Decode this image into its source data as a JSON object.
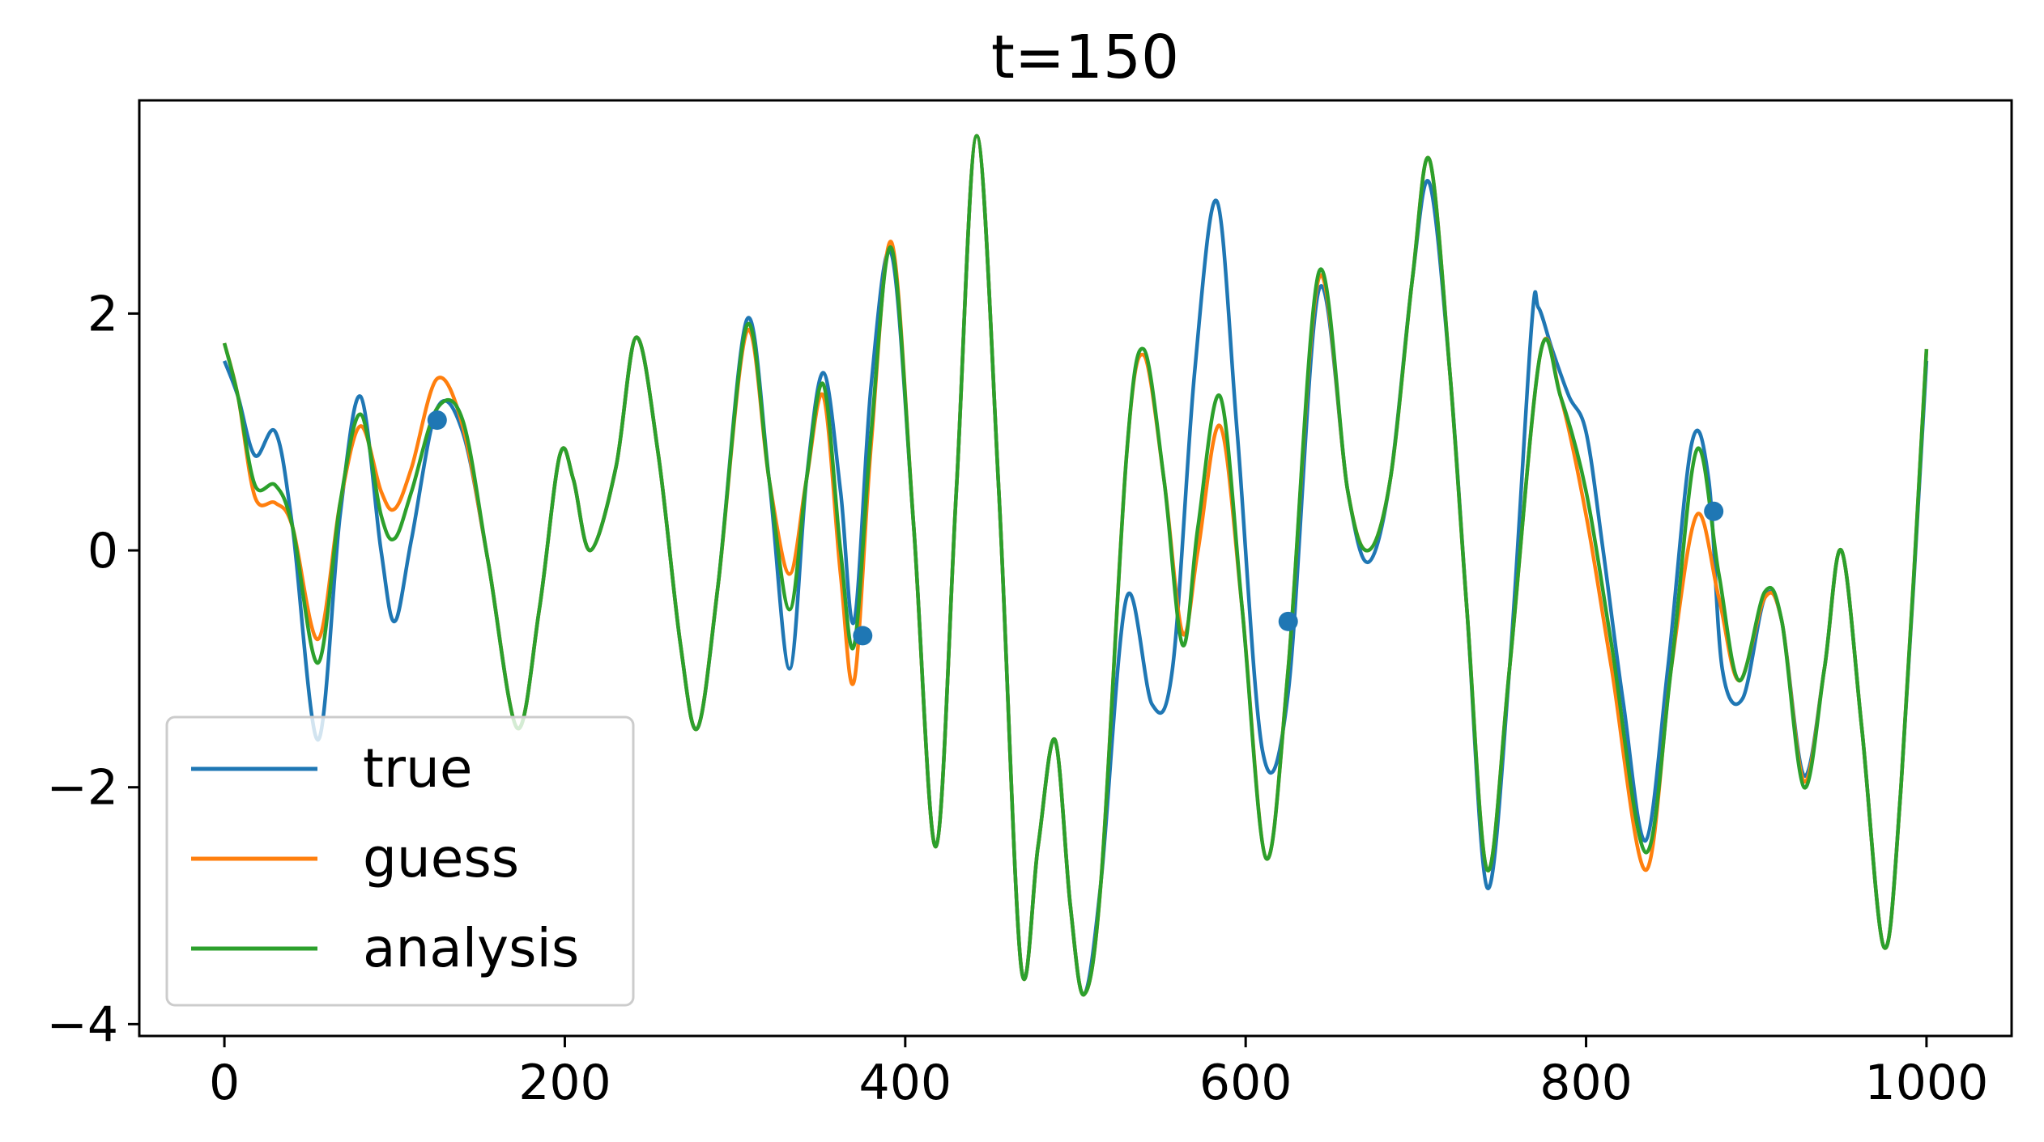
{
  "chart_data": {
    "type": "line",
    "title": "t=150",
    "xlabel": "",
    "ylabel": "",
    "xlim": [
      -50,
      1050
    ],
    "ylim": [
      -4.1,
      3.8
    ],
    "x_ticks": [
      0,
      200,
      400,
      600,
      800,
      1000
    ],
    "y_ticks": [
      -4,
      -2,
      0,
      2
    ],
    "y_tick_labels": [
      "−4",
      "−2",
      "0",
      "2"
    ],
    "grid": false,
    "legend_position": "lower-left",
    "colors": {
      "true": "#1f77b4",
      "guess": "#ff7f0e",
      "analysis": "#2ca02c",
      "observations": "#1f77b4"
    },
    "series": [
      {
        "name": "true",
        "x": [
          0,
          8,
          18,
          30,
          40,
          55,
          68,
          80,
          92,
          100,
          110,
          125,
          140,
          155,
          172,
          185,
          197,
          205,
          215,
          230,
          242,
          255,
          268,
          278,
          290,
          307,
          320,
          332,
          342,
          352,
          362,
          370,
          380,
          392,
          405,
          418,
          430,
          442,
          455,
          468,
          478,
          488,
          497,
          505,
          515,
          530,
          545,
          557,
          570,
          583,
          595,
          610,
          625,
          643,
          660,
          672,
          685,
          698,
          708,
          720,
          730,
          742,
          755,
          768,
          772,
          780,
          790,
          800,
          810,
          822,
          835,
          848,
          862,
          872,
          880,
          892,
          905,
          915,
          928,
          940,
          950,
          962,
          975,
          985,
          1000
        ],
        "y": [
          1.6,
          1.3,
          0.8,
          1.0,
          0.2,
          -1.6,
          0.3,
          1.3,
          0.0,
          -0.6,
          0.1,
          1.2,
          1.0,
          -0.1,
          -1.5,
          -0.5,
          0.8,
          0.6,
          0.0,
          0.7,
          1.8,
          0.8,
          -0.8,
          -1.5,
          -0.3,
          1.95,
          0.6,
          -1.0,
          0.6,
          1.5,
          0.5,
          -0.6,
          1.4,
          2.5,
          0.2,
          -2.5,
          0.5,
          3.5,
          0.5,
          -3.5,
          -2.5,
          -1.6,
          -3.0,
          -3.75,
          -2.8,
          -0.4,
          -1.3,
          -1.0,
          1.5,
          2.95,
          1.0,
          -1.7,
          -1.2,
          2.2,
          0.5,
          -0.1,
          0.6,
          2.3,
          3.1,
          1.5,
          -0.5,
          -2.85,
          -1.0,
          1.9,
          2.05,
          1.7,
          1.3,
          1.0,
          0.0,
          -1.3,
          -2.45,
          -1.0,
          0.9,
          0.6,
          -1.0,
          -1.25,
          -0.4,
          -0.6,
          -1.9,
          -1.0,
          0.0,
          -1.5,
          -3.35,
          -2.0,
          1.6
        ]
      },
      {
        "name": "guess",
        "x": [
          0,
          8,
          18,
          30,
          40,
          55,
          68,
          80,
          92,
          100,
          110,
          125,
          140,
          155,
          172,
          185,
          197,
          205,
          215,
          230,
          242,
          255,
          268,
          278,
          290,
          307,
          320,
          332,
          342,
          352,
          362,
          370,
          380,
          392,
          405,
          418,
          430,
          442,
          455,
          468,
          478,
          488,
          497,
          505,
          515,
          530,
          540,
          552,
          563,
          572,
          585,
          598,
          612,
          625,
          643,
          660,
          672,
          685,
          698,
          708,
          720,
          730,
          742,
          755,
          773,
          785,
          800,
          815,
          835,
          850,
          865,
          878,
          890,
          905,
          915,
          928,
          940,
          950,
          962,
          975,
          985,
          1000
        ],
        "y": [
          1.75,
          1.3,
          0.45,
          0.4,
          0.2,
          -0.75,
          0.4,
          1.05,
          0.5,
          0.35,
          0.7,
          1.45,
          1.05,
          -0.1,
          -1.5,
          -0.5,
          0.8,
          0.6,
          0.0,
          0.7,
          1.8,
          0.8,
          -0.8,
          -1.5,
          -0.3,
          1.85,
          0.6,
          -0.2,
          0.6,
          1.3,
          -0.2,
          -1.1,
          0.9,
          2.6,
          0.2,
          -2.5,
          0.5,
          3.5,
          0.5,
          -3.5,
          -2.5,
          -1.6,
          -3.0,
          -3.75,
          -2.8,
          0.8,
          1.65,
          0.6,
          -0.7,
          0.0,
          1.05,
          -0.5,
          -2.6,
          -1.0,
          2.3,
          0.5,
          0.0,
          0.6,
          2.3,
          3.3,
          1.5,
          -0.5,
          -2.7,
          -1.0,
          1.65,
          1.3,
          0.3,
          -1.0,
          -2.7,
          -1.0,
          0.3,
          -0.4,
          -1.1,
          -0.4,
          -0.6,
          -1.95,
          -1.0,
          0.0,
          -1.5,
          -3.35,
          -2.0,
          1.7
        ]
      },
      {
        "name": "analysis",
        "x": [
          0,
          8,
          18,
          30,
          40,
          55,
          68,
          80,
          92,
          100,
          110,
          125,
          140,
          155,
          172,
          185,
          197,
          205,
          215,
          230,
          242,
          255,
          268,
          278,
          290,
          307,
          320,
          332,
          342,
          352,
          362,
          370,
          380,
          392,
          405,
          418,
          430,
          442,
          455,
          468,
          478,
          488,
          497,
          505,
          515,
          530,
          540,
          552,
          563,
          572,
          585,
          598,
          612,
          625,
          643,
          660,
          672,
          685,
          698,
          708,
          720,
          730,
          742,
          755,
          773,
          785,
          800,
          815,
          835,
          850,
          865,
          878,
          890,
          905,
          915,
          928,
          940,
          950,
          962,
          975,
          985,
          1000
        ],
        "y": [
          1.75,
          1.3,
          0.55,
          0.55,
          0.2,
          -0.95,
          0.4,
          1.15,
          0.3,
          0.1,
          0.5,
          1.2,
          1.1,
          -0.1,
          -1.5,
          -0.5,
          0.8,
          0.6,
          0.0,
          0.7,
          1.8,
          0.8,
          -0.8,
          -1.5,
          -0.3,
          1.9,
          0.6,
          -0.5,
          0.6,
          1.4,
          0.0,
          -0.8,
          1.0,
          2.55,
          0.2,
          -2.5,
          0.5,
          3.5,
          0.5,
          -3.5,
          -2.5,
          -1.6,
          -3.0,
          -3.75,
          -2.8,
          0.8,
          1.7,
          0.6,
          -0.8,
          0.2,
          1.3,
          -0.5,
          -2.6,
          -1.0,
          2.35,
          0.5,
          0.0,
          0.6,
          2.3,
          3.3,
          1.5,
          -0.5,
          -2.7,
          -1.0,
          1.65,
          1.3,
          0.5,
          -0.8,
          -2.55,
          -1.0,
          0.85,
          -0.2,
          -1.1,
          -0.35,
          -0.6,
          -2.0,
          -1.0,
          0.0,
          -1.5,
          -3.35,
          -2.0,
          1.7
        ]
      }
    ],
    "observations": {
      "x": [
        125,
        375,
        625,
        875
      ],
      "y": [
        1.1,
        -0.72,
        -0.6,
        0.33
      ]
    }
  },
  "legend": [
    {
      "label": "true",
      "color": "#1f77b4"
    },
    {
      "label": "guess",
      "color": "#ff7f0e"
    },
    {
      "label": "analysis",
      "color": "#2ca02c"
    }
  ]
}
